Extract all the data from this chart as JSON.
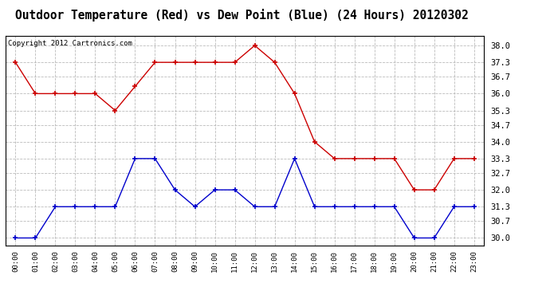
{
  "title": "Outdoor Temperature (Red) vs Dew Point (Blue) (24 Hours) 20120302",
  "copyright": "Copyright 2012 Cartronics.com",
  "hours": [
    "00:00",
    "01:00",
    "02:00",
    "03:00",
    "04:00",
    "05:00",
    "06:00",
    "07:00",
    "08:00",
    "09:00",
    "10:00",
    "11:00",
    "12:00",
    "13:00",
    "14:00",
    "15:00",
    "16:00",
    "17:00",
    "18:00",
    "19:00",
    "20:00",
    "21:00",
    "22:00",
    "23:00"
  ],
  "temp_red": [
    37.3,
    36.0,
    36.0,
    36.0,
    36.0,
    35.3,
    36.3,
    37.3,
    37.3,
    37.3,
    37.3,
    37.3,
    38.0,
    37.3,
    36.0,
    34.0,
    33.3,
    33.3,
    33.3,
    33.3,
    32.0,
    32.0,
    33.3,
    33.3
  ],
  "dew_blue": [
    30.0,
    30.0,
    31.3,
    31.3,
    31.3,
    31.3,
    33.3,
    33.3,
    32.0,
    31.3,
    32.0,
    32.0,
    31.3,
    31.3,
    33.3,
    31.3,
    31.3,
    31.3,
    31.3,
    31.3,
    30.0,
    30.0,
    31.3,
    31.3
  ],
  "ylim": [
    29.7,
    38.4
  ],
  "yticks": [
    30.0,
    30.7,
    31.3,
    32.0,
    32.7,
    33.3,
    34.0,
    34.7,
    35.3,
    36.0,
    36.7,
    37.3,
    38.0
  ],
  "red_color": "#cc0000",
  "blue_color": "#0000cc",
  "bg_color": "#ffffff",
  "grid_color": "#aaaaaa",
  "title_fontsize": 10.5,
  "copyright_fontsize": 6.5
}
